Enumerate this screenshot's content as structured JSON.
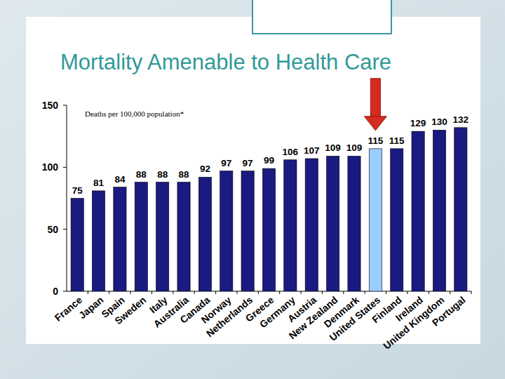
{
  "chart_data": {
    "type": "bar",
    "title": "Mortality Amenable to Health Care",
    "subtitle": "Deaths per 100,000 population*",
    "categories": [
      "France",
      "Japan",
      "Spain",
      "Sweden",
      "Italy",
      "Australia",
      "Canada",
      "Norway",
      "Netherlands",
      "Greece",
      "Germany",
      "Austria",
      "New Zealand",
      "Denmark",
      "United States",
      "Finland",
      "Ireland",
      "United Kingdom",
      "Portugal"
    ],
    "values": [
      75,
      81,
      84,
      88,
      88,
      88,
      92,
      97,
      97,
      99,
      106,
      107,
      109,
      109,
      115,
      115,
      129,
      130,
      132
    ],
    "colors": [
      "#1a1a80",
      "#1a1a80",
      "#1a1a80",
      "#1a1a80",
      "#1a1a80",
      "#1a1a80",
      "#1a1a80",
      "#1a1a80",
      "#1a1a80",
      "#1a1a80",
      "#1a1a80",
      "#1a1a80",
      "#1a1a80",
      "#1a1a80",
      "#99ccff",
      "#1a1a80",
      "#1a1a80",
      "#1a1a80",
      "#1a1a80"
    ],
    "ylim": [
      0,
      150
    ],
    "yticks": [
      0,
      50,
      100,
      150
    ],
    "grid": false,
    "data_labels": true
  }
}
